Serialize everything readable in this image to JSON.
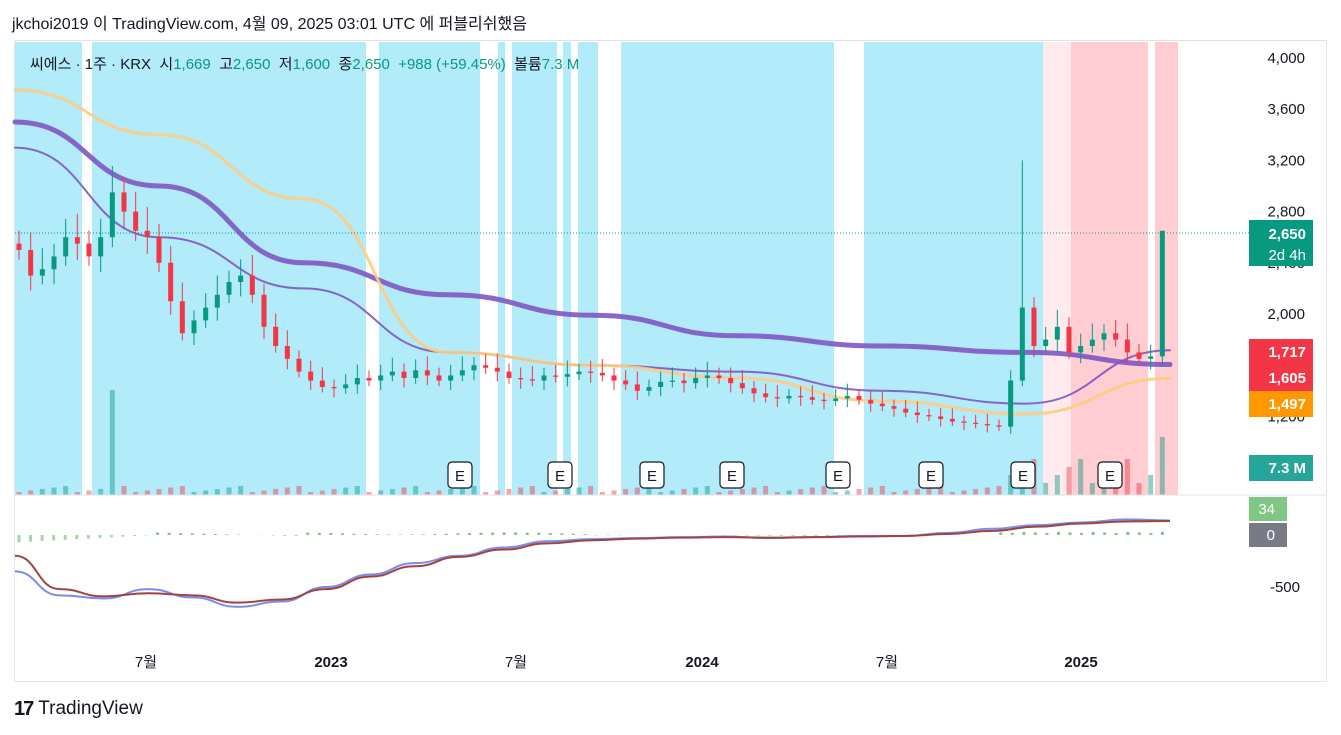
{
  "header": {
    "text": "jkchoi2019 이 TradingView.com, 4월 09, 2025 03:01 UTC 에 퍼블리쉬했음"
  },
  "legend": {
    "symbol": "씨에스 · 1주 · KRX",
    "open_label": "시",
    "open": "1,669",
    "high_label": "고",
    "high": "2,650",
    "low_label": "저",
    "low": "1,600",
    "close_label": "종",
    "close": "2,650",
    "change": "+988 (+59.45%)",
    "volume_label": "볼륨",
    "volume": "7.3 M"
  },
  "footer": {
    "brand": "TradingView"
  },
  "price_axis": {
    "ticks": [
      "4,000",
      "3,600",
      "3,200",
      "2,800",
      "2,400",
      "2,000",
      "1,200"
    ],
    "tick_values": [
      4000,
      3600,
      3200,
      2800,
      2400,
      2000,
      1200
    ],
    "labels": [
      {
        "text": "2,650",
        "sub": "2d 4h",
        "value": 2650,
        "color": "#089981"
      },
      {
        "text": "1,717",
        "value": 1717,
        "color": "#f23645"
      },
      {
        "text": "1,605",
        "value": 1605,
        "color": "#f23645"
      },
      {
        "text": "1,497",
        "value": 1497,
        "color": "#ff9800"
      },
      {
        "text": "7.3 M",
        "value": null,
        "color": "#26a69a"
      }
    ]
  },
  "macd_axis": {
    "ticks": [
      "-500"
    ],
    "labels": [
      {
        "text": "34",
        "color": "#81c784"
      },
      {
        "text": "0",
        "color": "#787b86"
      }
    ]
  },
  "time_axis": {
    "labels": [
      "7월",
      "2023",
      "7월",
      "2024",
      "7월",
      "2025"
    ]
  },
  "earnings_marker": "E",
  "chart_data": {
    "type": "candlestick",
    "interval": "1주",
    "exchange": "KRX",
    "price_ylim": [
      1050,
      4150
    ],
    "last": {
      "open": 1669,
      "high": 2650,
      "low": 1600,
      "close": 2650,
      "change": 988,
      "change_pct": 59.45,
      "volume": "7.3M"
    },
    "candles_close_approx": [
      2500,
      2300,
      2350,
      2450,
      2600,
      2550,
      2450,
      2600,
      2950,
      2800,
      2650,
      2600,
      2400,
      2100,
      1850,
      1950,
      2050,
      2150,
      2250,
      2300,
      2150,
      1900,
      1750,
      1650,
      1550,
      1480,
      1430,
      1420,
      1450,
      1500,
      1480,
      1520,
      1550,
      1500,
      1560,
      1520,
      1480,
      1520,
      1560,
      1600,
      1580,
      1550,
      1500,
      1490,
      1480,
      1520,
      1510,
      1530,
      1550,
      1540,
      1520,
      1480,
      1450,
      1400,
      1430,
      1470,
      1480,
      1460,
      1500,
      1520,
      1500,
      1460,
      1420,
      1380,
      1350,
      1340,
      1360,
      1350,
      1330,
      1320,
      1340,
      1360,
      1330,
      1300,
      1280,
      1260,
      1230,
      1210,
      1200,
      1180,
      1160,
      1150,
      1140,
      1130,
      1120,
      1480,
      2050,
      1750,
      1800,
      1900,
      1700,
      1750,
      1800,
      1850,
      1800,
      1700,
      1650,
      1669,
      2650
    ],
    "moving_averages": [
      {
        "color": "#7e57c2",
        "width": 5,
        "values_approx": [
          3500,
          3000,
          2400,
          2150,
          1990,
          1830,
          1750,
          1700,
          1605
        ]
      },
      {
        "color": "#7e57c2",
        "width": 2,
        "values_approx": [
          3300,
          2600,
          2200,
          1700,
          1600,
          1550,
          1400,
          1300,
          1717
        ]
      },
      {
        "color": "#ffcc80",
        "width": 3,
        "values_approx": [
          3750,
          3400,
          2900,
          1700,
          1600,
          1500,
          1320,
          1220,
          1497
        ]
      }
    ],
    "earnings_dates_count": 8,
    "macd": {
      "last": 34,
      "zero": 0,
      "ylim": [
        -700,
        150
      ]
    }
  },
  "colors": {
    "up": "#089981",
    "down": "#f23645",
    "bg_blue": "#b2ebf9",
    "bg_red": "#ffcdd2",
    "bg_lightred": "#ffebee"
  }
}
